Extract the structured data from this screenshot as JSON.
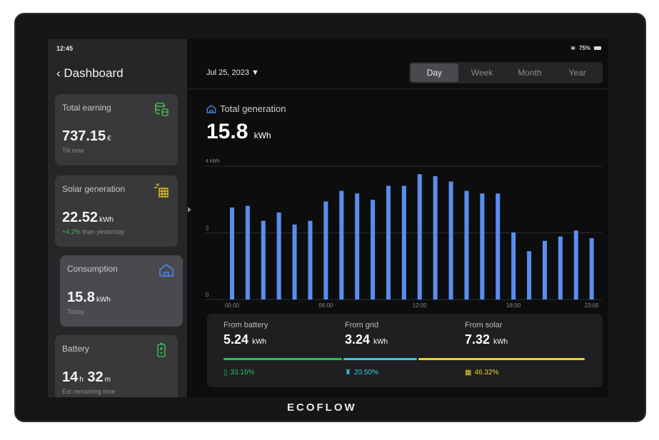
{
  "status": {
    "time": "12:45",
    "battery": "75%"
  },
  "sidebar": {
    "title": "Dashboard",
    "cards": [
      {
        "title": "Total earning",
        "value": "737.15",
        "unit": "€",
        "sub": "Till now",
        "icon": "coins-icon",
        "color": "#4caf50"
      },
      {
        "title": "Solar generation",
        "value": "22.52",
        "unit": "kWh",
        "sub_highlight": "+4.2%",
        "sub": " than yesterday",
        "icon": "solar-panel-icon",
        "color": "#e0c020"
      },
      {
        "title": "Consumption",
        "value": "15.8",
        "unit": "kWh",
        "sub": "Today",
        "icon": "home-icon",
        "color": "#4a7fe0",
        "selected": true
      },
      {
        "title": "Battery",
        "value_h": "14",
        "unit_h": "h",
        "value_m": "32",
        "unit_m": "m",
        "sub": "Est remaining time",
        "icon": "battery-icon",
        "color": "#2fb84a"
      }
    ]
  },
  "header": {
    "date": "Jul 25, 2023",
    "tabs": [
      "Day",
      "Week",
      "Month",
      "Year"
    ],
    "active_tab": "Day"
  },
  "summary": {
    "label": "Total generation",
    "value": "15.8",
    "unit": "kWh"
  },
  "chart_data": {
    "type": "bar",
    "ylabel": "4 kWh",
    "ylim": [
      0,
      4
    ],
    "yticks": [
      "0",
      "2"
    ],
    "x": [
      "00:00",
      "01:00",
      "02:00",
      "03:00",
      "04:00",
      "05:00",
      "06:00",
      "07:00",
      "08:00",
      "09:00",
      "10:00",
      "11:00",
      "12:00",
      "13:00",
      "14:00",
      "15:00",
      "16:00",
      "17:00",
      "18:00",
      "19:00",
      "20:00",
      "21:00",
      "22:00",
      "23:00"
    ],
    "xtick_labels": [
      "00:00",
      "06:00",
      "12:00",
      "18:00",
      "23:00"
    ],
    "values": [
      2.76,
      2.81,
      2.36,
      2.61,
      2.25,
      2.36,
      2.94,
      3.26,
      3.18,
      2.99,
      3.41,
      3.41,
      3.76,
      3.7,
      3.54,
      3.26,
      3.18,
      3.18,
      2.01,
      1.45,
      1.76,
      1.89,
      2.07,
      1.84
    ],
    "color": "#5b8def",
    "grid": true
  },
  "sources": [
    {
      "label": "From battery",
      "value": "5.24",
      "unit": "kWh",
      "pct": "33.16%",
      "share": 33.16,
      "color": "#22c55e",
      "icon": "battery-icon"
    },
    {
      "label": "From grid",
      "value": "3.24",
      "unit": "kWh",
      "pct": "20.50%",
      "share": 20.5,
      "color": "#3cc8e0",
      "icon": "grid-tower-icon"
    },
    {
      "label": "From solar",
      "value": "7.32",
      "unit": "kWh",
      "pct": "46.32%",
      "share": 46.32,
      "color": "#e8d030",
      "icon": "solar-panel-icon"
    }
  ],
  "brand": "ECOFLOW"
}
